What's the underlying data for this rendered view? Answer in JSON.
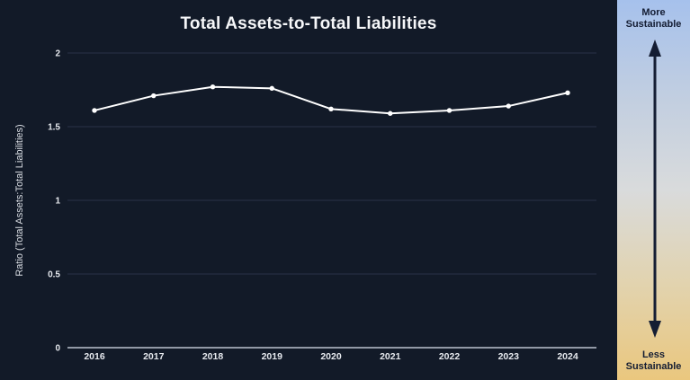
{
  "chart_data": {
    "type": "line",
    "title": "Total Assets-to-Total Liabilities",
    "xlabel": "",
    "ylabel": "Ratio (Total Assets:Total Liabilities)",
    "categories": [
      "2016",
      "2017",
      "2018",
      "2019",
      "2020",
      "2021",
      "2022",
      "2023",
      "2024"
    ],
    "values": [
      1.61,
      1.71,
      1.77,
      1.76,
      1.62,
      1.59,
      1.61,
      1.64,
      1.73
    ],
    "ylim": [
      0,
      2
    ],
    "ytick_values": [
      0,
      0.5,
      1,
      1.5,
      2
    ],
    "ytick_labels": [
      "0",
      "0.5",
      "1",
      "1.5",
      "2"
    ],
    "grid": "horizontal",
    "legend": "none",
    "line_color": "#ffffff",
    "marker": "point"
  },
  "scale": {
    "top_label": "More Sustainable",
    "bottom_label": "Less Sustainable",
    "gradient_top": "#a6c1ec",
    "gradient_middle": "#d9dbdc",
    "gradient_bottom": "#eac77e",
    "arrow_color": "#141d33"
  },
  "colors": {
    "background": "#121a28",
    "gridline": "#2a3347",
    "axis_line": "#bcc3cf",
    "tick_text": "#e6e9ee",
    "title_text": "#f6f7f9"
  }
}
